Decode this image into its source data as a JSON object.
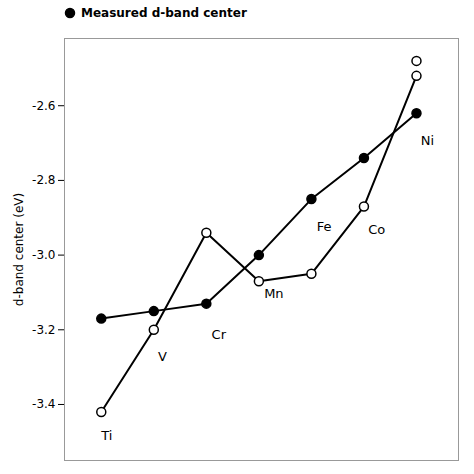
{
  "chart_data": {
    "type": "line",
    "ylabel": "d-band center (eV)",
    "xlim": [
      0.3,
      7.8
    ],
    "ylim": [
      -3.55,
      -2.42
    ],
    "yticks": [
      -3.4,
      -3.2,
      {
        "value": -3.0,
        "label": "-3.0"
      },
      -2.8,
      -2.6
    ],
    "tick_labels": "y",
    "legend": "top",
    "series": [
      {
        "name": "Measured d-band center",
        "type": "line",
        "marker": "filled",
        "color": "#000000",
        "x": [
          1,
          2,
          3,
          4,
          5,
          6,
          7
        ],
        "values": [
          -3.17,
          -3.15,
          -3.13,
          -3.0,
          -2.85,
          -2.74,
          -2.62
        ]
      },
      {
        "type": "line",
        "marker": "open",
        "color": "#000000",
        "x": [
          1,
          2,
          3,
          4,
          5,
          6,
          7
        ],
        "values": [
          -3.42,
          -3.2,
          -2.94,
          -3.07,
          -3.05,
          -2.87,
          -2.52
        ]
      },
      {
        "type": "scatter",
        "marker": "open",
        "color": "#000000",
        "x": [
          7
        ],
        "values": [
          -2.48
        ]
      }
    ],
    "annotations": [
      {
        "text": "Ti",
        "x": 1.0,
        "y": -3.47
      },
      {
        "text": "V",
        "x": 2.08,
        "y": -3.26
      },
      {
        "text": "Cr",
        "x": 3.1,
        "y": -3.2
      },
      {
        "text": "Mn",
        "x": 4.1,
        "y": -3.09
      },
      {
        "text": "Fe",
        "x": 5.1,
        "y": -2.91
      },
      {
        "text": "Co",
        "x": 6.08,
        "y": -2.92
      },
      {
        "text": "Ni",
        "x": 7.08,
        "y": -2.68
      }
    ]
  }
}
